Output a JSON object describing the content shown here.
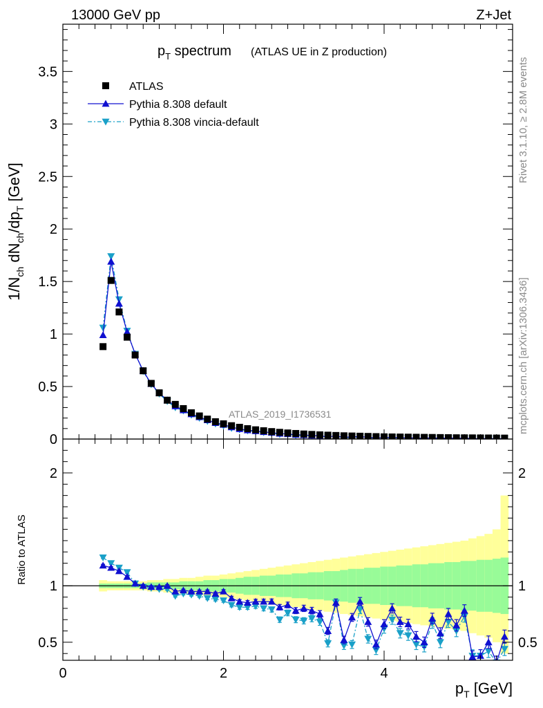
{
  "header": {
    "energy_label": "13000 GeV pp",
    "process_label": "Z+Jet",
    "title_main": "p",
    "title_main_sub": "T",
    "title_main_rest": " spectrum",
    "title_paren": "(ATLAS UE in Z production)",
    "watermark": "ATLAS_2019_I1736531",
    "side_rivet": "Rivet 3.1.10, ≥ 2.8M events",
    "side_mcplots": "mcplots.cern.ch [arXiv:1306.3436]"
  },
  "colors": {
    "atlas": "#000000",
    "default": "#1010d0",
    "vincia": "#1aa0c8",
    "band_outer": "#ffff9a",
    "band_inner": "#98fb98"
  },
  "chart_data": [
    {
      "type": "line",
      "panel": "main",
      "ylabel": "1/N_ch dN_ch/dp_T [GeV]",
      "xlim": [
        0,
        5.6
      ],
      "ylim": [
        0,
        3.95
      ],
      "xticks": [
        0,
        2,
        4
      ],
      "yticks": [
        0,
        0.5,
        1,
        1.5,
        2,
        2.5,
        3,
        3.5
      ],
      "yticklabels": [
        "0",
        "0.5",
        "1",
        "1.5",
        "2",
        "2.5",
        "3",
        "3.5"
      ],
      "x": [
        0.5,
        0.6,
        0.7,
        0.8,
        0.9,
        1.0,
        1.1,
        1.2,
        1.3,
        1.4,
        1.5,
        1.6,
        1.7,
        1.8,
        1.9,
        2.0,
        2.1,
        2.2,
        2.3,
        2.4,
        2.5,
        2.6,
        2.7,
        2.8,
        2.9,
        3.0,
        3.1,
        3.2,
        3.3,
        3.4,
        3.5,
        3.6,
        3.7,
        3.8,
        3.9,
        4.0,
        4.1,
        4.2,
        4.3,
        4.4,
        4.5,
        4.6,
        4.7,
        4.8,
        4.9,
        5.0,
        5.1,
        5.2,
        5.3,
        5.4,
        5.5
      ],
      "series": [
        {
          "name": "ATLAS",
          "marker": "square",
          "values": [
            0.88,
            1.51,
            1.21,
            0.97,
            0.8,
            0.65,
            0.53,
            0.44,
            0.37,
            0.33,
            0.29,
            0.25,
            0.22,
            0.19,
            0.165,
            0.145,
            0.127,
            0.112,
            0.099,
            0.088,
            0.079,
            0.071,
            0.064,
            0.058,
            0.053,
            0.048,
            0.044,
            0.04,
            0.037,
            0.034,
            0.031,
            0.029,
            0.027,
            0.025,
            0.023,
            0.021,
            0.02,
            0.019,
            0.018,
            0.017,
            0.016,
            0.015,
            0.014,
            0.013,
            0.012,
            0.0115,
            0.011,
            0.0105,
            0.01,
            0.0095,
            0.009
          ]
        },
        {
          "name": "Pythia 8.308 default",
          "marker": "triangle-up",
          "values": [
            0.99,
            1.69,
            1.29,
            1.02,
            0.81,
            0.65,
            0.525,
            0.437,
            0.37,
            0.313,
            0.275,
            0.237,
            0.209,
            0.18,
            0.154,
            0.137,
            0.113,
            0.096,
            0.084,
            0.076,
            0.068,
            0.061,
            0.052,
            0.048,
            0.041,
            0.038,
            0.034,
            0.03,
            0.022,
            0.029,
            0.016,
            0.021,
            0.023,
            0.017,
            0.011,
            0.014,
            0.016,
            0.013,
            0.012,
            0.009,
            0.008,
            0.011,
            0.008,
            0.01,
            0.008,
            0.009,
            0.004,
            0.004,
            0.005,
            0.003,
            0.005
          ]
        },
        {
          "name": "Pythia 8.308 vincia-default",
          "marker": "triangle-down",
          "values": [
            1.06,
            1.74,
            1.33,
            1.03,
            0.81,
            0.645,
            0.52,
            0.43,
            0.36,
            0.3,
            0.27,
            0.23,
            0.2,
            0.17,
            0.146,
            0.127,
            0.104,
            0.09,
            0.08,
            0.072,
            0.063,
            0.056,
            0.045,
            0.044,
            0.037,
            0.033,
            0.031,
            0.027,
            0.018,
            0.029,
            0.014,
            0.014,
            0.021,
            0.013,
            0.01,
            0.013,
            0.014,
            0.011,
            0.01,
            0.008,
            0.007,
            0.01,
            0.007,
            0.009,
            0.007,
            0.008,
            0.004,
            0.004,
            0.004,
            0.003,
            0.004
          ]
        }
      ]
    },
    {
      "type": "line",
      "panel": "ratio",
      "xlabel": "p_T [GeV]",
      "ylabel": "Ratio to ATLAS",
      "xlim": [
        0,
        5.6
      ],
      "ylim": [
        0.34,
        2.3
      ],
      "xticks": [
        0,
        2,
        4
      ],
      "xticklabels": [
        "0",
        "2",
        "4"
      ],
      "yticks": [
        0.5,
        1,
        2
      ],
      "yticklabels": [
        "0.5",
        "1",
        "2"
      ],
      "x": [
        0.5,
        0.6,
        0.7,
        0.8,
        0.9,
        1.0,
        1.1,
        1.2,
        1.3,
        1.4,
        1.5,
        1.6,
        1.7,
        1.8,
        1.9,
        2.0,
        2.1,
        2.2,
        2.3,
        2.4,
        2.5,
        2.6,
        2.7,
        2.8,
        2.9,
        3.0,
        3.1,
        3.2,
        3.3,
        3.4,
        3.5,
        3.6,
        3.7,
        3.8,
        3.9,
        4.0,
        4.1,
        4.2,
        4.3,
        4.4,
        4.5,
        4.6,
        4.7,
        4.8,
        4.9,
        5.0,
        5.1,
        5.2,
        5.3,
        5.4,
        5.5
      ],
      "series": [
        {
          "name": "Pythia 8.308 default",
          "marker": "triangle-up",
          "values": [
            1.18,
            1.16,
            1.13,
            1.08,
            1.02,
            1.0,
            0.99,
            0.99,
            1.0,
            0.95,
            0.96,
            0.95,
            0.95,
            0.95,
            0.93,
            0.95,
            0.89,
            0.86,
            0.85,
            0.86,
            0.86,
            0.86,
            0.81,
            0.83,
            0.78,
            0.8,
            0.78,
            0.75,
            0.6,
            0.85,
            0.52,
            0.72,
            0.86,
            0.68,
            0.48,
            0.66,
            0.8,
            0.68,
            0.66,
            0.55,
            0.5,
            0.71,
            0.58,
            0.75,
            0.65,
            0.78,
            0.37,
            0.38,
            0.5,
            0.32,
            0.55
          ]
        },
        {
          "name": "Pythia 8.308 vincia-default",
          "marker": "triangle-down",
          "values": [
            1.25,
            1.2,
            1.16,
            1.12,
            1.02,
            0.99,
            0.98,
            0.97,
            0.97,
            0.91,
            0.93,
            0.92,
            0.91,
            0.89,
            0.88,
            0.87,
            0.83,
            0.81,
            0.81,
            0.82,
            0.8,
            0.79,
            0.7,
            0.76,
            0.7,
            0.69,
            0.71,
            0.68,
            0.49,
            0.85,
            0.47,
            0.48,
            0.79,
            0.53,
            0.43,
            0.62,
            0.7,
            0.58,
            0.56,
            0.48,
            0.46,
            0.67,
            0.5,
            0.68,
            0.6,
            0.73,
            0.38,
            0.38,
            0.42,
            0.32,
            0.44
          ]
        }
      ],
      "bands": {
        "inner_low": [
          0.98,
          0.98,
          0.98,
          0.98,
          0.98,
          0.98,
          0.97,
          0.97,
          0.97,
          0.97,
          0.96,
          0.96,
          0.96,
          0.95,
          0.95,
          0.94,
          0.94,
          0.93,
          0.92,
          0.92,
          0.91,
          0.91,
          0.9,
          0.9,
          0.89,
          0.89,
          0.88,
          0.88,
          0.87,
          0.87,
          0.86,
          0.85,
          0.85,
          0.84,
          0.84,
          0.83,
          0.83,
          0.82,
          0.82,
          0.81,
          0.81,
          0.8,
          0.8,
          0.79,
          0.79,
          0.78,
          0.78,
          0.77,
          0.77,
          0.76,
          0.75
        ],
        "inner_high": [
          1.02,
          1.02,
          1.02,
          1.02,
          1.02,
          1.02,
          1.03,
          1.03,
          1.03,
          1.03,
          1.04,
          1.04,
          1.04,
          1.05,
          1.05,
          1.06,
          1.06,
          1.07,
          1.08,
          1.08,
          1.09,
          1.09,
          1.1,
          1.1,
          1.11,
          1.11,
          1.12,
          1.12,
          1.13,
          1.13,
          1.14,
          1.15,
          1.15,
          1.16,
          1.16,
          1.17,
          1.17,
          1.18,
          1.18,
          1.19,
          1.19,
          1.2,
          1.2,
          1.21,
          1.21,
          1.22,
          1.22,
          1.23,
          1.23,
          1.24,
          1.25
        ],
        "outer_low": [
          0.95,
          0.96,
          0.96,
          0.96,
          0.96,
          0.96,
          0.95,
          0.95,
          0.94,
          0.94,
          0.93,
          0.93,
          0.92,
          0.91,
          0.91,
          0.9,
          0.89,
          0.88,
          0.87,
          0.86,
          0.85,
          0.84,
          0.83,
          0.82,
          0.81,
          0.8,
          0.79,
          0.78,
          0.77,
          0.76,
          0.75,
          0.74,
          0.73,
          0.72,
          0.71,
          0.7,
          0.69,
          0.68,
          0.67,
          0.66,
          0.65,
          0.64,
          0.63,
          0.62,
          0.61,
          0.6,
          0.58,
          0.56,
          0.54,
          0.5,
          0.4
        ],
        "outer_high": [
          1.05,
          1.04,
          1.04,
          1.04,
          1.04,
          1.04,
          1.05,
          1.05,
          1.06,
          1.06,
          1.07,
          1.07,
          1.08,
          1.09,
          1.09,
          1.1,
          1.11,
          1.12,
          1.13,
          1.14,
          1.15,
          1.16,
          1.17,
          1.18,
          1.19,
          1.2,
          1.21,
          1.22,
          1.23,
          1.24,
          1.25,
          1.26,
          1.27,
          1.28,
          1.29,
          1.3,
          1.31,
          1.32,
          1.33,
          1.34,
          1.35,
          1.36,
          1.37,
          1.38,
          1.39,
          1.4,
          1.42,
          1.44,
          1.46,
          1.5,
          1.8
        ]
      }
    }
  ]
}
